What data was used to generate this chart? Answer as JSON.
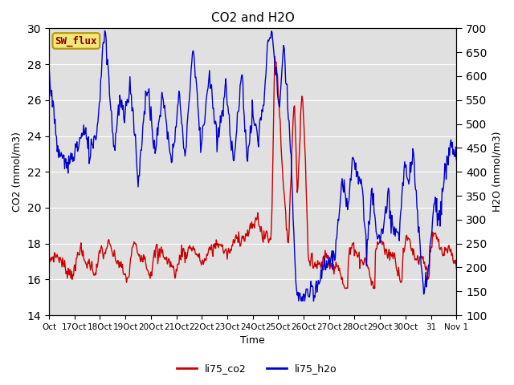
{
  "title": "CO2 and H2O",
  "xlabel": "Time",
  "ylabel_left": "CO2 (mmol/m3)",
  "ylabel_right": "H2O (mmol/m3)",
  "ylim_left": [
    14,
    30
  ],
  "ylim_right": [
    100,
    700
  ],
  "plot_bg_color": "#e0e0e0",
  "fig_bg_color": "#ffffff",
  "legend_box_label": "SW_flux",
  "legend_box_facecolor": "#f0e878",
  "legend_box_edgecolor": "#b8960a",
  "legend_box_text_color": "#8b0000",
  "line_co2_color": "#cc0000",
  "line_h2o_color": "#0000cc",
  "line_width": 1.0,
  "yticks_left": [
    14,
    16,
    18,
    20,
    22,
    24,
    26,
    28,
    30
  ],
  "yticks_right": [
    100,
    150,
    200,
    250,
    300,
    350,
    400,
    450,
    500,
    550,
    600,
    650,
    700
  ],
  "xtick_labels": [
    "Oct",
    "17Oct",
    "18Oct",
    "19Oct",
    "20Oct",
    "21Oct",
    "22Oct",
    "23Oct",
    "24Oct",
    "25Oct",
    "26Oct",
    "27Oct",
    "28Oct",
    "29Oct",
    "30Oct",
    "31",
    "Nov 1"
  ],
  "legend_labels": [
    "li75_co2",
    "li75_h2o"
  ],
  "grid_color": "#ffffff",
  "title_fontsize": 11,
  "axis_fontsize": 9,
  "tick_fontsize": 7.5
}
